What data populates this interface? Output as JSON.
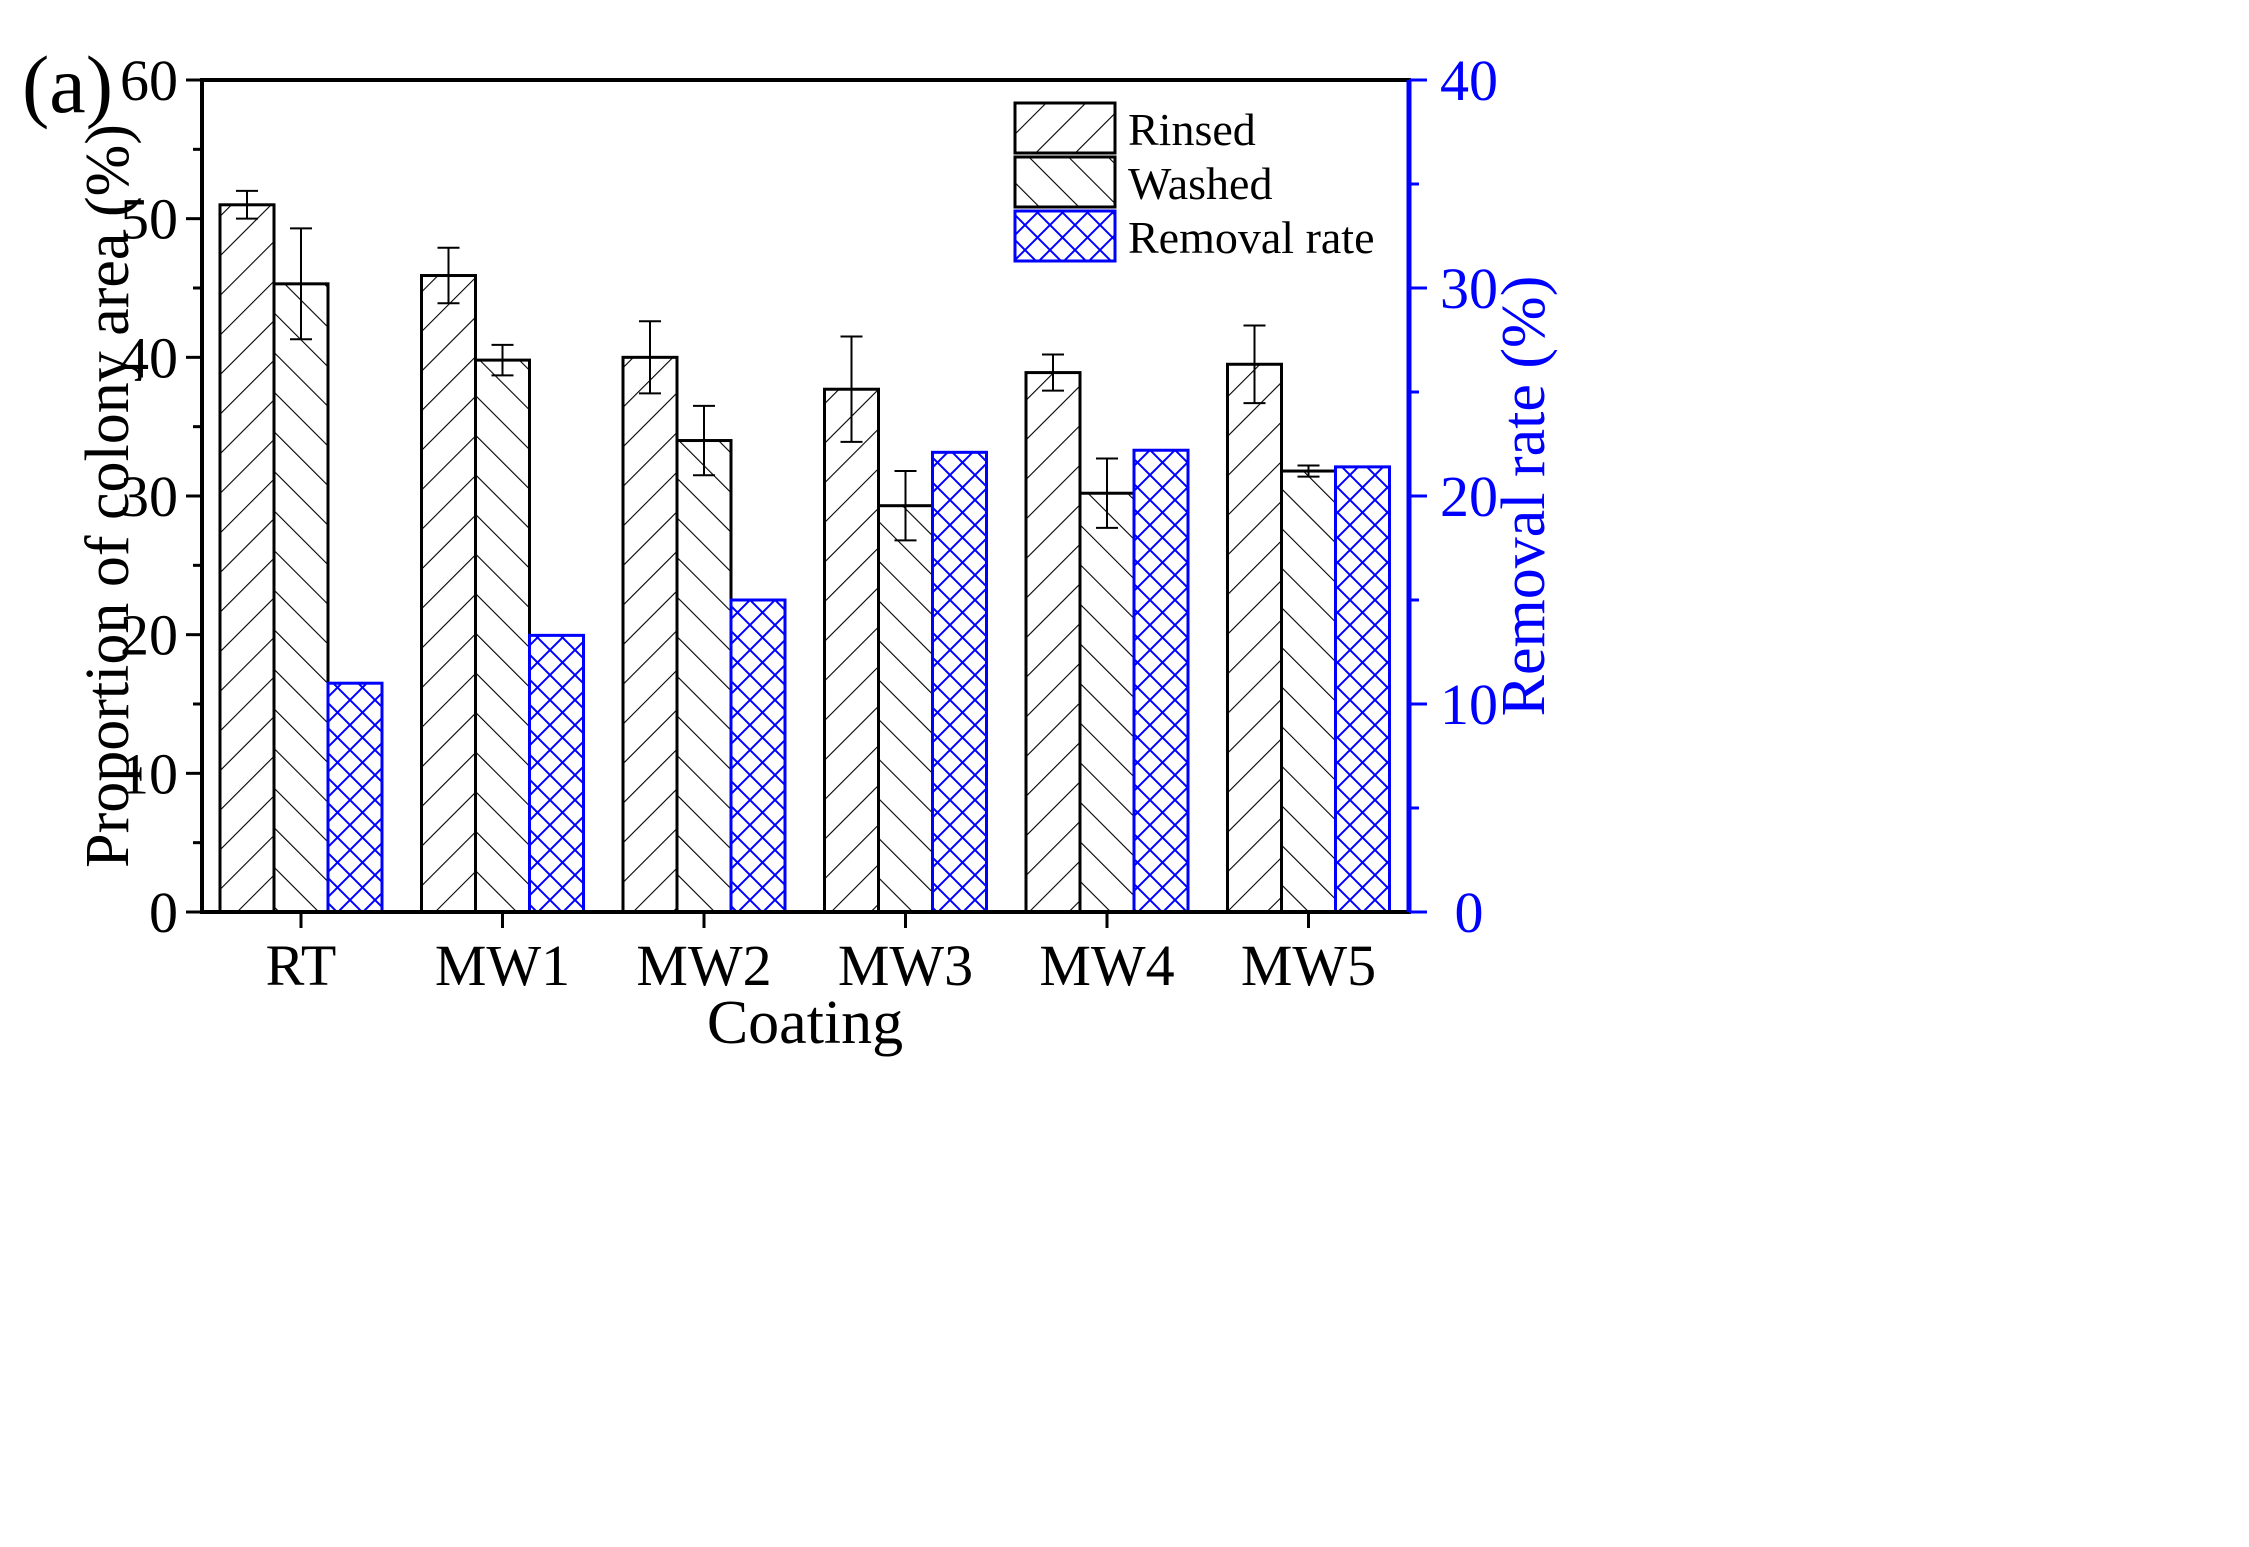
{
  "panel_label": "(a)",
  "colors": {
    "axis": "#000000",
    "secondary_axis": "#0000ff",
    "rinsed": "#000000",
    "washed": "#000000",
    "removal": "#0000ff"
  },
  "chart_data": {
    "type": "bar",
    "title": "",
    "xlabel": "Coating",
    "ylabel": "Proportion of colony area (%)",
    "y2label": "Removal rate (%)",
    "categories": [
      "RT",
      "MW1",
      "MW2",
      "MW3",
      "MW4",
      "MW5"
    ],
    "ylim": [
      0,
      60
    ],
    "y2lim": [
      0,
      40
    ],
    "yticks": [
      0,
      10,
      20,
      30,
      40,
      50,
      60
    ],
    "y2ticks": [
      0,
      10,
      20,
      30,
      40
    ],
    "legend_position": "top-right",
    "series": [
      {
        "name": "Rinsed",
        "axis": "left",
        "pattern": "forward-hatch",
        "values": [
          51.0,
          45.9,
          40.0,
          37.7,
          38.9,
          39.5
        ],
        "errors": [
          1.0,
          2.0,
          2.6,
          3.8,
          1.3,
          2.8
        ]
      },
      {
        "name": "Washed",
        "axis": "left",
        "pattern": "back-hatch",
        "values": [
          45.3,
          39.8,
          34.0,
          29.3,
          30.2,
          31.8
        ],
        "errors": [
          4.0,
          1.1,
          2.5,
          2.5,
          2.5,
          0.4
        ]
      },
      {
        "name": "Removal rate",
        "axis": "right",
        "pattern": "cross-hatch",
        "values": [
          11.0,
          13.3,
          15.0,
          22.1,
          22.2,
          21.4
        ],
        "errors": [
          0,
          0,
          0,
          0,
          0,
          0
        ]
      }
    ]
  }
}
